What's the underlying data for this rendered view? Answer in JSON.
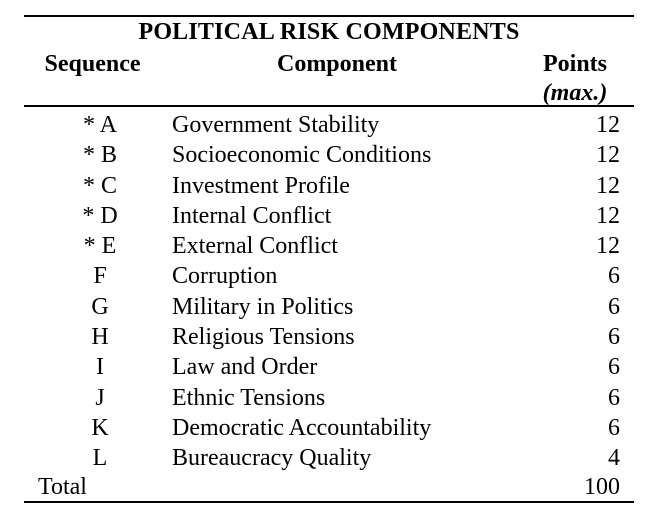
{
  "table": {
    "title": "POLITICAL RISK COMPONENTS",
    "headers": {
      "sequence": "Sequence",
      "component": "Component",
      "points": "Points",
      "points_sub": "(max.)"
    },
    "rows": [
      {
        "sequence": "* A",
        "component": "Government Stability",
        "points": "12"
      },
      {
        "sequence": "* B",
        "component": "Socioeconomic Conditions",
        "points": "12"
      },
      {
        "sequence": "* C",
        "component": "Investment Profile",
        "points": "12"
      },
      {
        "sequence": "* D",
        "component": "Internal Conflict",
        "points": "12"
      },
      {
        "sequence": "* E",
        "component": "External Conflict",
        "points": "12"
      },
      {
        "sequence": "F",
        "component": "Corruption",
        "points": "6"
      },
      {
        "sequence": "G",
        "component": "Military in Politics",
        "points": "6"
      },
      {
        "sequence": "H",
        "component": "Religious Tensions",
        "points": "6"
      },
      {
        "sequence": "I",
        "component": "Law and Order",
        "points": "6"
      },
      {
        "sequence": "J",
        "component": "Ethnic Tensions",
        "points": "6"
      },
      {
        "sequence": "K",
        "component": "Democratic Accountability",
        "points": "6"
      },
      {
        "sequence": "L",
        "component": "Bureaucracy Quality",
        "points": "4"
      }
    ],
    "total": {
      "label": "Total",
      "value": "100"
    }
  }
}
